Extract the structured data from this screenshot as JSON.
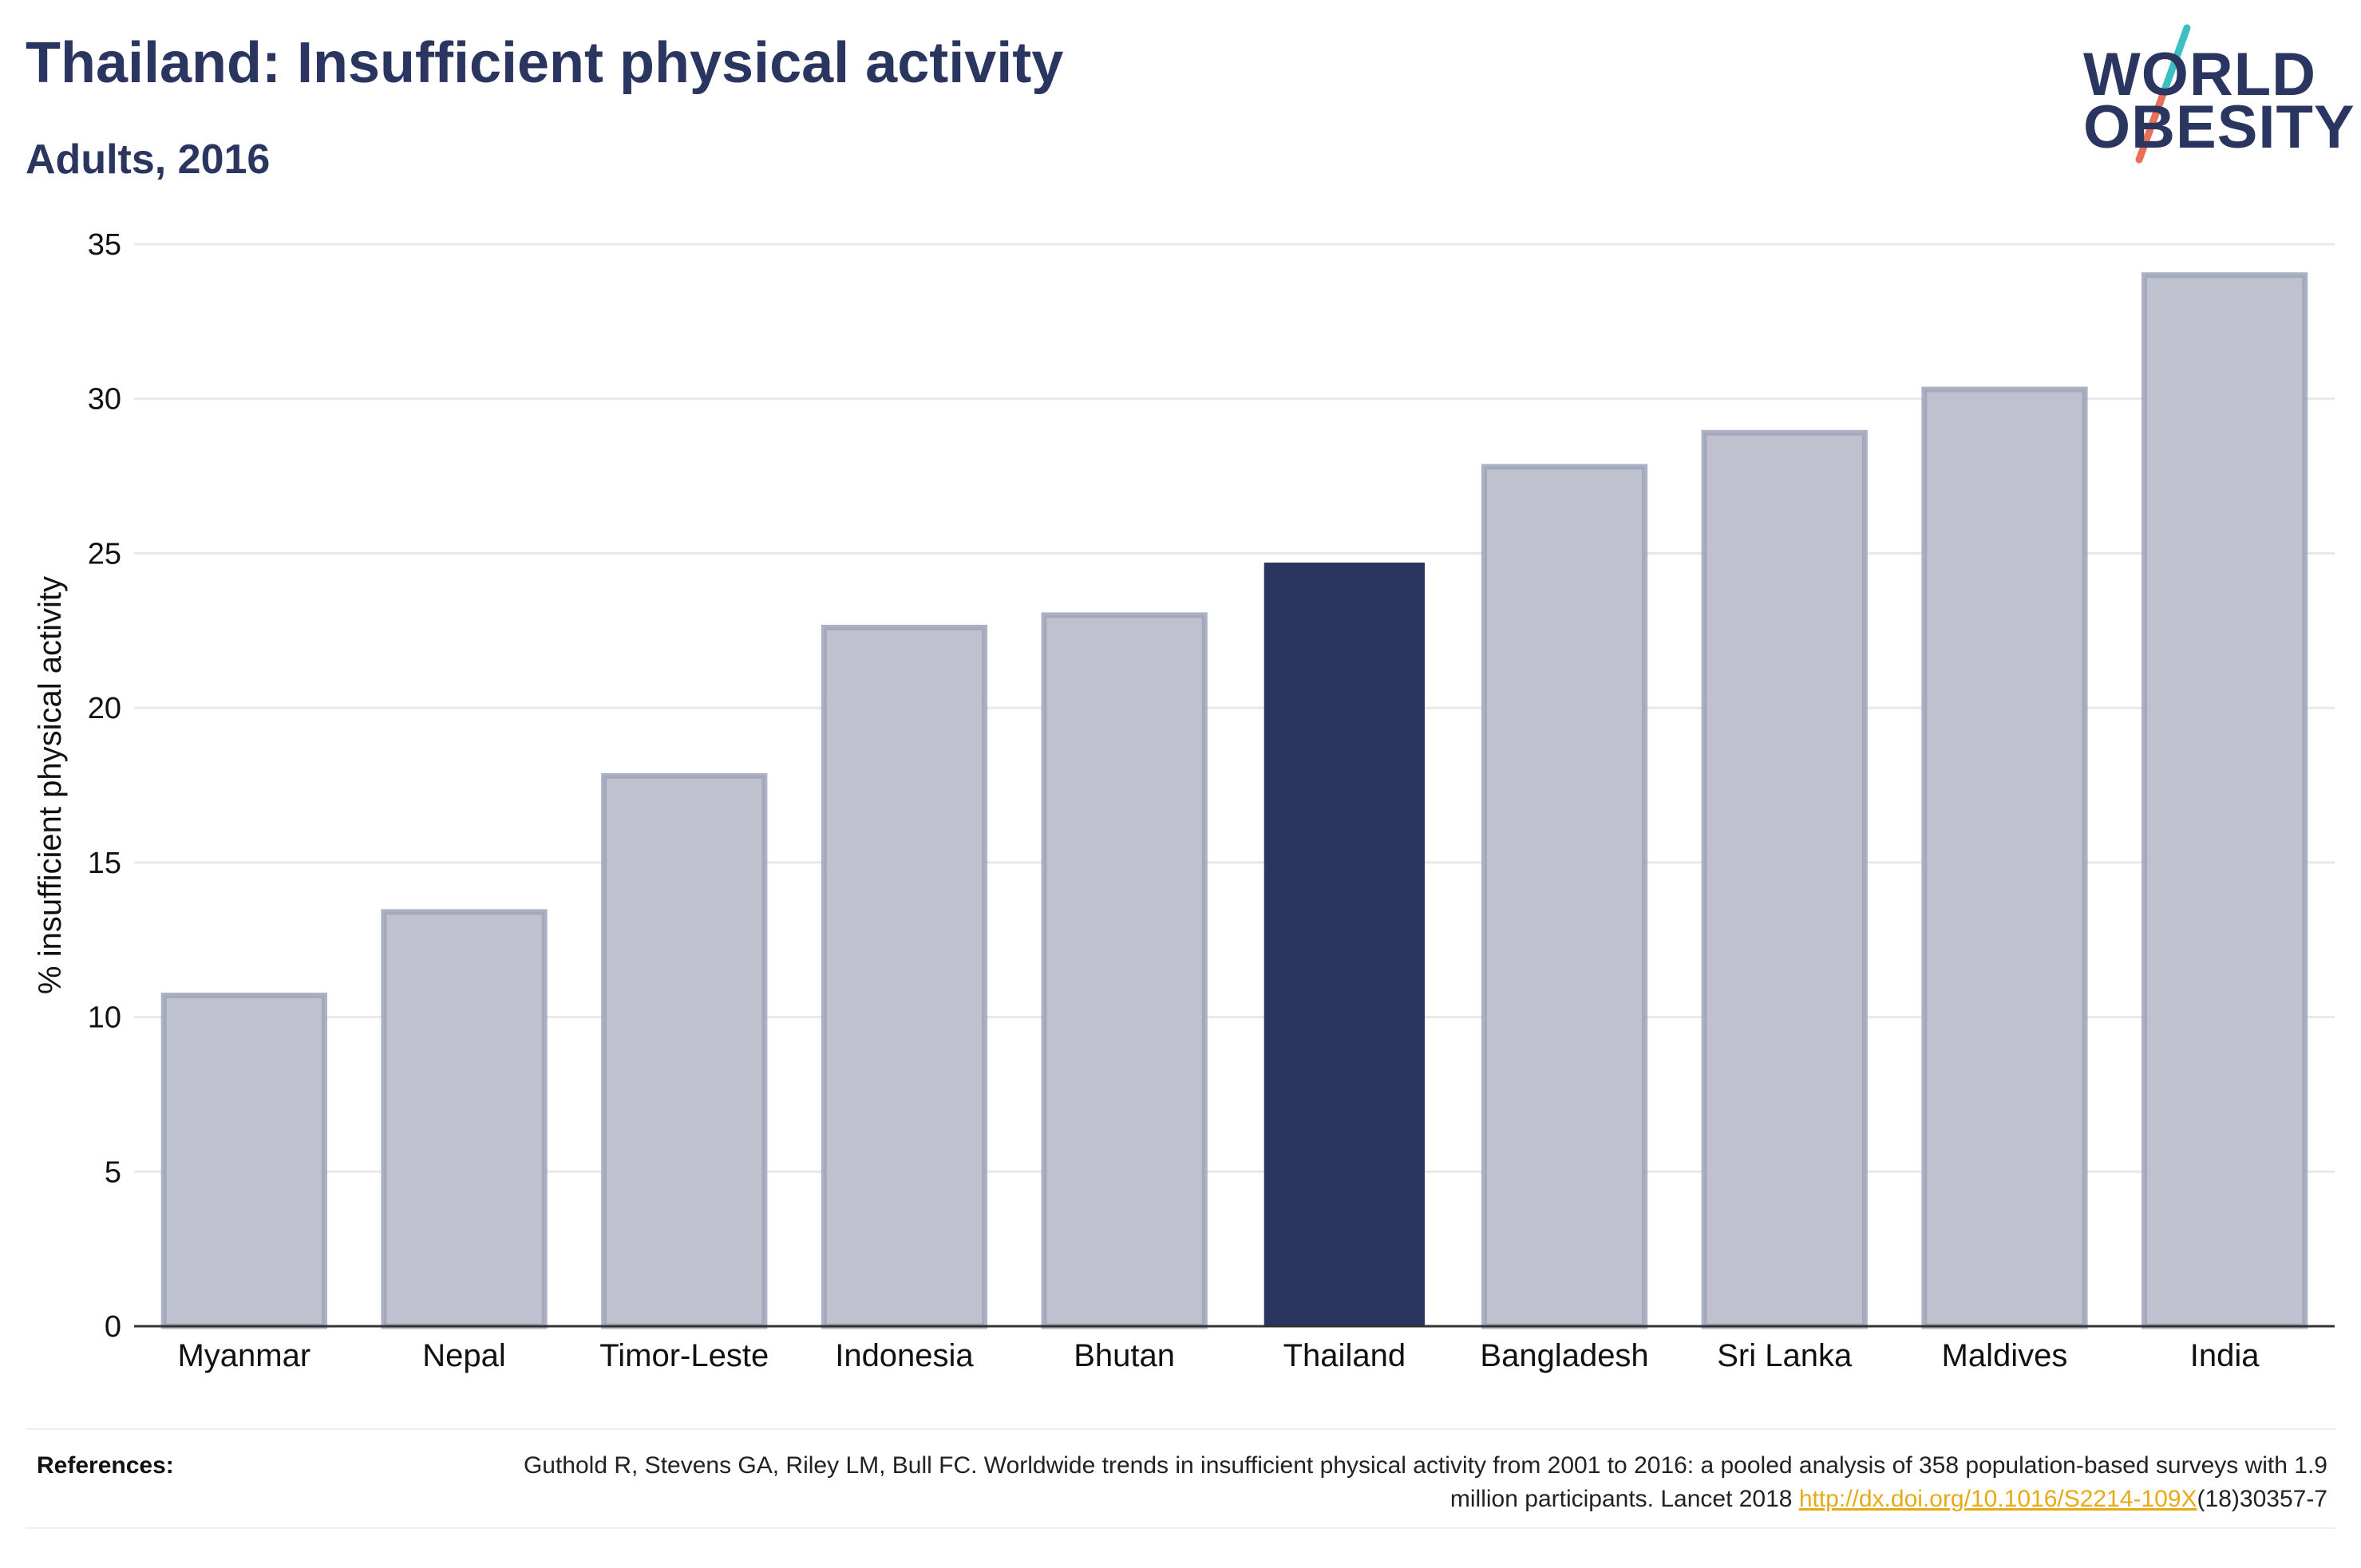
{
  "header": {
    "title": "Thailand: Insufficient physical activity",
    "subtitle": "Adults, 2016"
  },
  "logo": {
    "line1": "WORLD",
    "line2": "OBESITY",
    "slash_colors": [
      "#3bbfc1",
      "#e8705a"
    ]
  },
  "chart_data": {
    "type": "bar",
    "categories": [
      "Myanmar",
      "Nepal",
      "Timor-Leste",
      "Indonesia",
      "Bhutan",
      "Thailand",
      "Bangladesh",
      "Sri Lanka",
      "Maldives",
      "India"
    ],
    "values": [
      10.7,
      13.4,
      17.8,
      22.6,
      23.0,
      24.7,
      27.8,
      28.9,
      30.3,
      34.0
    ],
    "highlight": "Thailand",
    "ylabel": "% insufficient physical activity",
    "xlabel": "",
    "ylim": [
      0,
      35
    ],
    "yticks": [
      0,
      5,
      10,
      15,
      20,
      25,
      30,
      35
    ],
    "grid": true,
    "colors": {
      "highlight": "#2a3560",
      "other_fill": "#bfc2ce",
      "other_stroke": "#9ea3b8",
      "grid": "#e8e8e8",
      "axis": "#333333"
    }
  },
  "references": {
    "label": "References:",
    "text_before": "Guthold R, Stevens GA, Riley LM, Bull FC. Worldwide trends in insufficient physical activity from 2001 to 2016: a pooled analysis of 358 population-based surveys with 1.9 million participants. Lancet 2018 ",
    "link": "http://dx.doi.org/10.1016/S2214-109X",
    "text_after": "(18)30357-7"
  }
}
